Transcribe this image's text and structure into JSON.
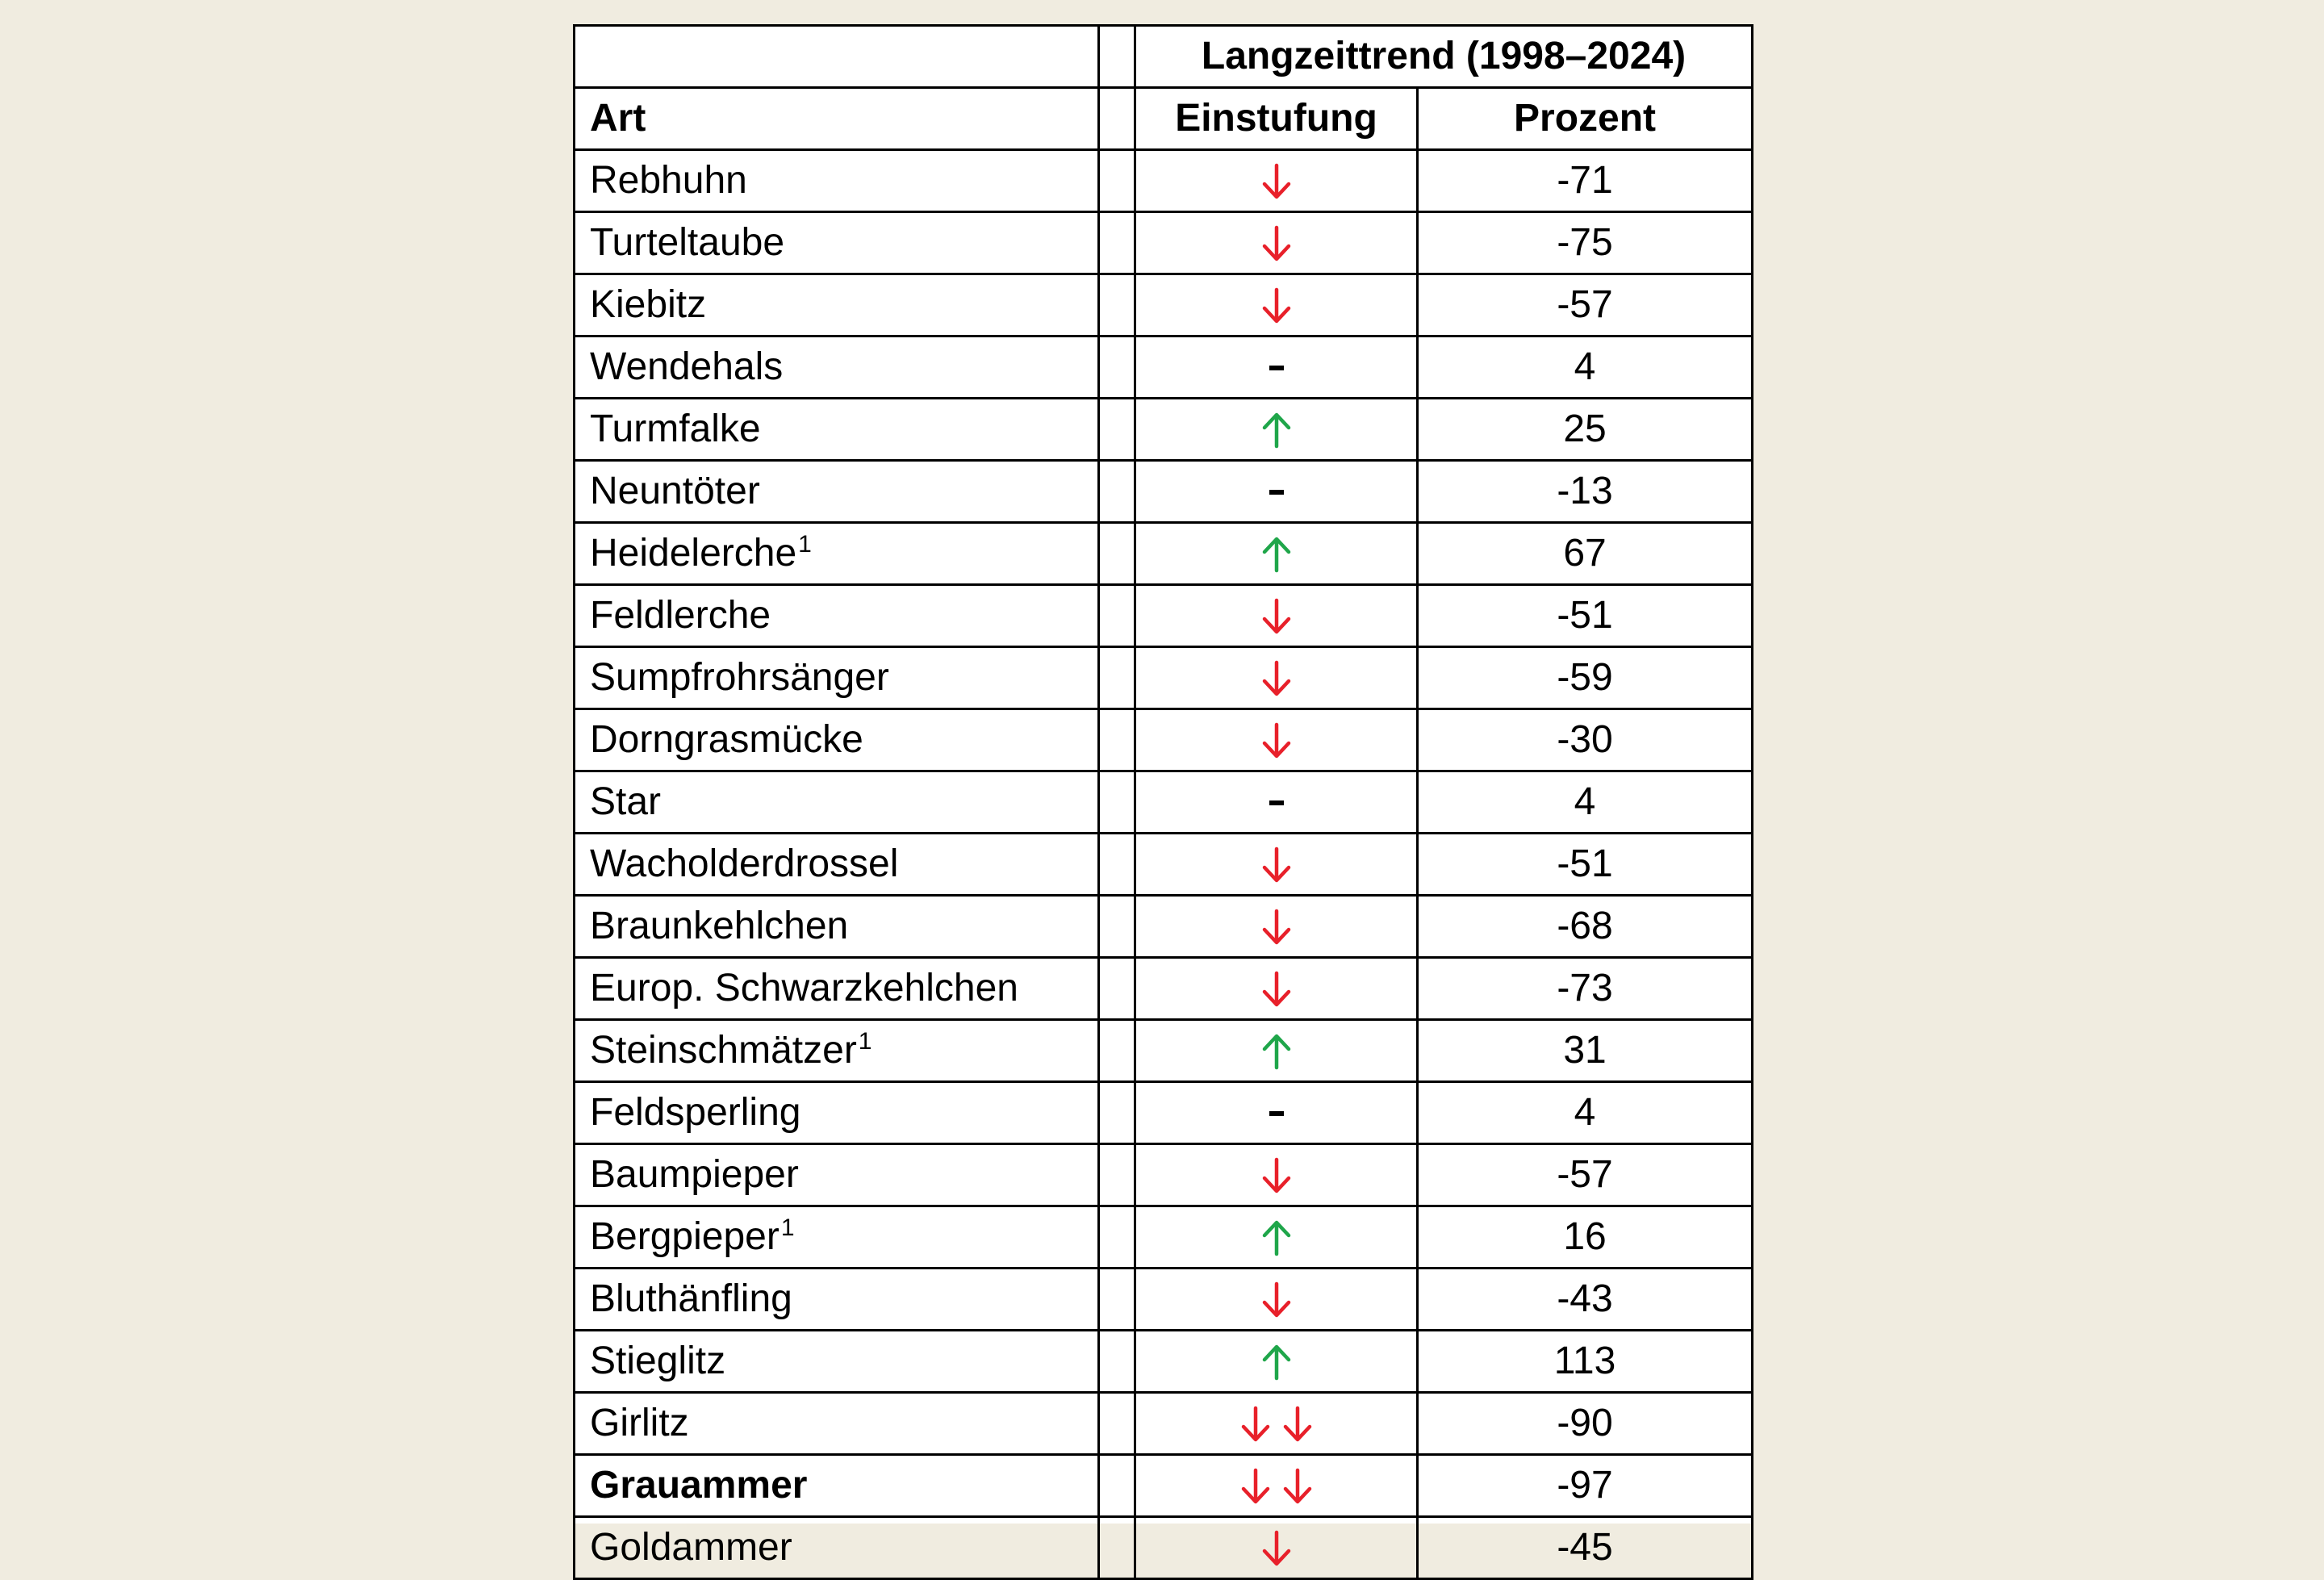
{
  "table": {
    "group_header": "Langzeittrend (1998–2024)",
    "headers": {
      "art": "Art",
      "einstufung": "Einstufung",
      "prozent": "Prozent"
    },
    "colors": {
      "down": "#e8202a",
      "up": "#1fa64a",
      "stable": "#000000"
    },
    "rows": [
      {
        "art": "Rebhuhn",
        "footnote": "",
        "bold": false,
        "einstufung": "down-arrow-icon",
        "prozent": "-71"
      },
      {
        "art": "Turteltaube",
        "footnote": "",
        "bold": false,
        "einstufung": "down-arrow-icon",
        "prozent": "-75"
      },
      {
        "art": "Kiebitz",
        "footnote": "",
        "bold": false,
        "einstufung": "down-arrow-icon",
        "prozent": "-57"
      },
      {
        "art": "Wendehals",
        "footnote": "",
        "bold": false,
        "einstufung": "dash-icon",
        "prozent": "4"
      },
      {
        "art": "Turmfalke",
        "footnote": "",
        "bold": false,
        "einstufung": "up-arrow-icon",
        "prozent": "25"
      },
      {
        "art": "Neuntöter",
        "footnote": "",
        "bold": false,
        "einstufung": "dash-icon",
        "prozent": "-13"
      },
      {
        "art": "Heidelerche",
        "footnote": "1",
        "bold": false,
        "einstufung": "up-arrow-icon",
        "prozent": "67"
      },
      {
        "art": "Feldlerche",
        "footnote": "",
        "bold": false,
        "einstufung": "down-arrow-icon",
        "prozent": "-51"
      },
      {
        "art": "Sumpfrohrsänger",
        "footnote": "",
        "bold": false,
        "einstufung": "down-arrow-icon",
        "prozent": "-59"
      },
      {
        "art": "Dorngrasmücke",
        "footnote": "",
        "bold": false,
        "einstufung": "down-arrow-icon",
        "prozent": "-30"
      },
      {
        "art": "Star",
        "footnote": "",
        "bold": false,
        "einstufung": "dash-icon",
        "prozent": "4"
      },
      {
        "art": "Wacholderdrossel",
        "footnote": "",
        "bold": false,
        "einstufung": "down-arrow-icon",
        "prozent": "-51"
      },
      {
        "art": "Braunkehlchen",
        "footnote": "",
        "bold": false,
        "einstufung": "down-arrow-icon",
        "prozent": "-68"
      },
      {
        "art": "Europ. Schwarzkehlchen",
        "footnote": "",
        "bold": false,
        "einstufung": "down-arrow-icon",
        "prozent": "-73"
      },
      {
        "art": "Steinschmätzer",
        "footnote": "1",
        "bold": false,
        "einstufung": "up-arrow-icon",
        "prozent": "31"
      },
      {
        "art": "Feldsperling",
        "footnote": "",
        "bold": false,
        "einstufung": "dash-icon",
        "prozent": "4"
      },
      {
        "art": "Baumpieper",
        "footnote": "",
        "bold": false,
        "einstufung": "down-arrow-icon",
        "prozent": "-57"
      },
      {
        "art": "Bergpieper",
        "footnote": "1",
        "bold": false,
        "einstufung": "up-arrow-icon",
        "prozent": "16"
      },
      {
        "art": "Bluthänfling",
        "footnote": "",
        "bold": false,
        "einstufung": "down-arrow-icon",
        "prozent": "-43"
      },
      {
        "art": "Stieglitz",
        "footnote": "",
        "bold": false,
        "einstufung": "up-arrow-icon",
        "prozent": "113"
      },
      {
        "art": "Girlitz",
        "footnote": "",
        "bold": false,
        "einstufung": "double-down-arrow-icon",
        "prozent": "-90"
      },
      {
        "art": "Grauammer",
        "footnote": "",
        "bold": true,
        "einstufung": "double-down-arrow-icon",
        "prozent": "-97"
      },
      {
        "art": "Goldammer",
        "footnote": "",
        "bold": false,
        "einstufung": "down-arrow-icon",
        "prozent": "-45"
      }
    ]
  }
}
